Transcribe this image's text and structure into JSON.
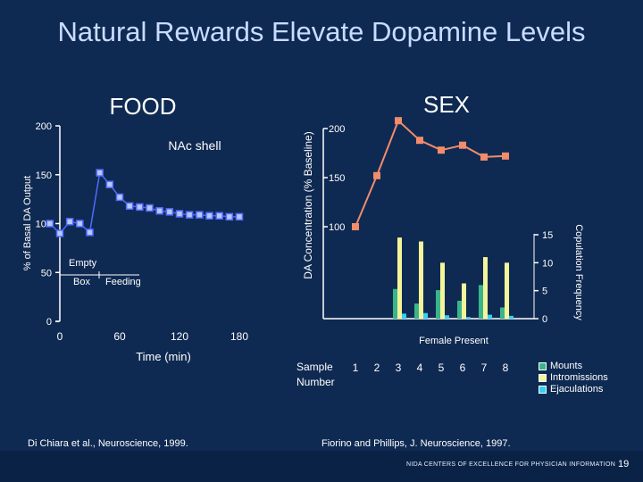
{
  "title": "Natural Rewards Elevate Dopamine Levels",
  "footer": {
    "org": "NIDA CENTERS OF EXCELLENCE FOR PHYSICIAN INFORMATION",
    "page": "19"
  },
  "chart_data": [
    {
      "type": "line",
      "title": "FOOD",
      "subtitle": "NAc shell",
      "xlabel": "Time (min)",
      "ylabel": "% of Basal DA Output",
      "xlim": [
        0,
        180
      ],
      "ylim": [
        0,
        200
      ],
      "x_ticks": [
        "0",
        "60",
        "120",
        "180"
      ],
      "y_ticks": [
        "0",
        "50",
        "100",
        "150",
        "200"
      ],
      "annotations": [
        "Empty",
        "Box",
        "Feeding"
      ],
      "source": "Di Chiara et al., Neuroscience, 1999.",
      "series": [
        {
          "color": "#4f6bff",
          "x": [
            -10,
            0,
            10,
            20,
            30,
            40,
            50,
            60,
            70,
            80,
            90,
            100,
            110,
            120,
            130,
            140,
            150,
            160,
            170,
            180
          ],
          "y": [
            100,
            90,
            102,
            100,
            91,
            152,
            140,
            127,
            118,
            117,
            116,
            113,
            112,
            110,
            109,
            109,
            108,
            108,
            107,
            107
          ]
        }
      ]
    },
    {
      "type": "line",
      "title": "SEX",
      "ylabel": "DA Concentration (% Baseline)",
      "xlabel": "Sample Number",
      "y_ticks": [
        "100",
        "150",
        "200"
      ],
      "ylim": [
        100,
        200
      ],
      "categories": [
        "1",
        "2",
        "3",
        "4",
        "5",
        "6",
        "7",
        "8"
      ],
      "source": "Fiorino and Phillips, J. Neuroscience, 1997.",
      "series": [
        {
          "color": "#f28c6b",
          "values": [
            100,
            152,
            208,
            188,
            178,
            183,
            171,
            172
          ]
        }
      ]
    },
    {
      "type": "bar",
      "ylabel": "Copulation Frequency",
      "y_ticks": [
        "0",
        "5",
        "10",
        "15"
      ],
      "ylim": [
        0,
        15
      ],
      "categories": [
        "1",
        "2",
        "3",
        "4",
        "5",
        "6",
        "7",
        "8"
      ],
      "annotation": "Female Present",
      "series": [
        {
          "name": "Mounts",
          "color": "#39b58a",
          "values": [
            0,
            0,
            5.3,
            2.7,
            5.1,
            3.2,
            6.0,
            2.0
          ]
        },
        {
          "name": "Intromissions",
          "color": "#f4f49a",
          "values": [
            0,
            0,
            14.5,
            13.8,
            10.0,
            6.3,
            11.0,
            10.0
          ]
        },
        {
          "name": "Ejaculations",
          "color": "#2fd2f2",
          "values": [
            0,
            0,
            0.9,
            1.0,
            0.6,
            0.3,
            0.7,
            0.5
          ]
        }
      ]
    }
  ]
}
